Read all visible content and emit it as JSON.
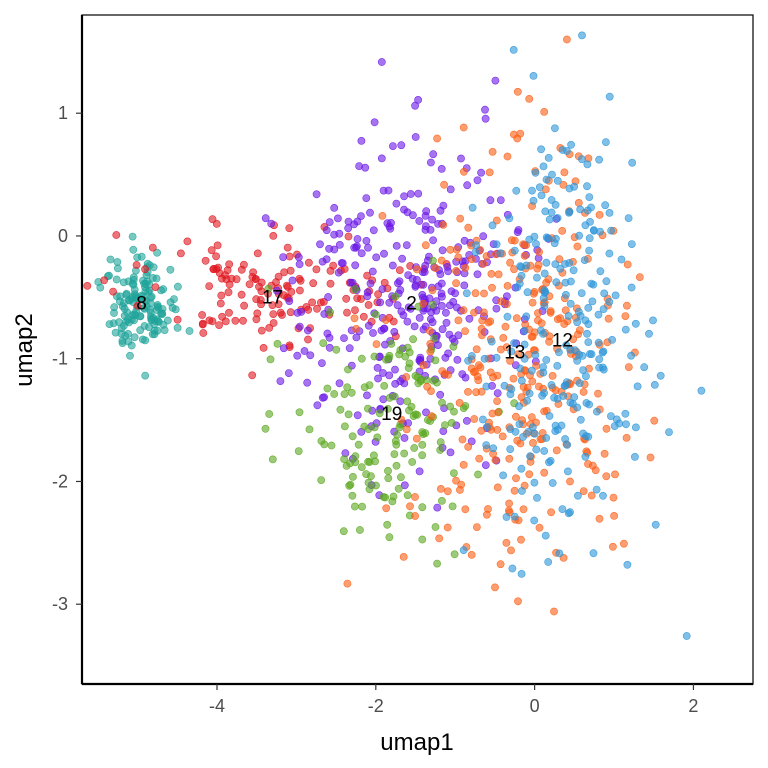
{
  "chart_data": {
    "type": "scatter",
    "title": "",
    "xlabel": "umap1",
    "ylabel": "umap2",
    "xlim": [
      -5.7,
      2.75
    ],
    "ylim": [
      -3.65,
      1.8
    ],
    "x_ticks": [
      -4,
      -2,
      0,
      2
    ],
    "y_ticks": [
      -3,
      -2,
      -1,
      0,
      1
    ],
    "x_tick_labels": [
      "-4",
      "-2",
      "0",
      "2"
    ],
    "y_tick_labels": [
      "-3",
      "-2",
      "-1",
      "0",
      "1"
    ],
    "grid": false,
    "legend": "none",
    "clusters": [
      {
        "label": "8",
        "color": "#1fa39a",
        "center": [
          -4.95,
          -0.55
        ],
        "spread": [
          0.22,
          0.2
        ],
        "count": 140
      },
      {
        "label": "17",
        "color": "#e0161e",
        "center": [
          -3.3,
          -0.45
        ],
        "spread": [
          0.8,
          0.25
        ],
        "count": 150
      },
      {
        "label": "2",
        "color": "#6a18e6",
        "center": [
          -1.6,
          -0.5
        ],
        "spread": [
          0.75,
          0.65
        ],
        "count": 330
      },
      {
        "label": "19",
        "color": "#5aa71e",
        "center": [
          -1.8,
          -1.5
        ],
        "spread": [
          0.6,
          0.5
        ],
        "count": 150
      },
      {
        "label": "13",
        "color": "#fb5e14",
        "center": [
          -0.25,
          -0.9
        ],
        "spread": [
          0.7,
          0.9
        ],
        "count": 330
      },
      {
        "label": "12",
        "color": "#2b95d8",
        "center": [
          0.35,
          -0.85
        ],
        "spread": [
          0.55,
          0.95
        ],
        "count": 260
      }
    ],
    "cluster_label_positions": [
      {
        "label": "8",
        "x": -4.95,
        "y": -0.55
      },
      {
        "label": "17",
        "x": -3.3,
        "y": -0.5
      },
      {
        "label": "2",
        "x": -1.55,
        "y": -0.55
      },
      {
        "label": "19",
        "x": -1.8,
        "y": -1.45
      },
      {
        "label": "13",
        "x": -0.25,
        "y": -0.95
      },
      {
        "label": "12",
        "x": 0.35,
        "y": -0.85
      }
    ]
  }
}
